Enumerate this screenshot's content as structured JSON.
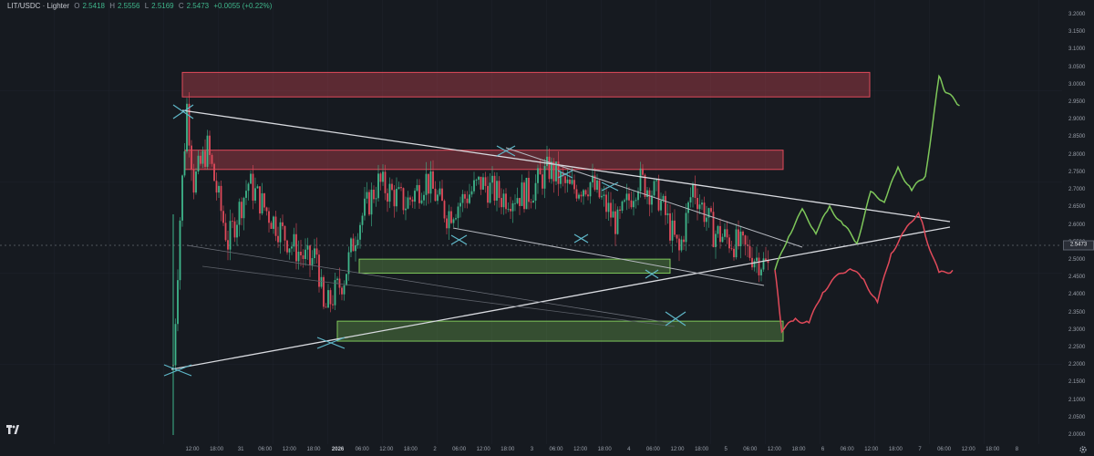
{
  "header": {
    "symbol": "LIT/USDC · Lighter",
    "open_label": "O",
    "open": "2.5418",
    "high_label": "H",
    "high": "2.5556",
    "low_label": "L",
    "low": "2.5169",
    "close_label": "C",
    "close": "2.5473",
    "change": "+0.0055 (+0.22%)"
  },
  "current_price": "2.5473",
  "colors": {
    "up": "#3fb68b",
    "down": "#e04a5a",
    "supply_zone": "#e04a5a",
    "demand_zone": "#7ec75a",
    "background": "#161a20"
  },
  "icons": {
    "logo": "tradingview-logo-icon",
    "settings": "gear-icon"
  },
  "y_axis_labels": [
    "3.2000",
    "3.1500",
    "3.1000",
    "3.0500",
    "3.0000",
    "2.9500",
    "2.9000",
    "2.8500",
    "2.8000",
    "2.7500",
    "2.7000",
    "2.6500",
    "2.6000",
    "2.5500",
    "2.5000",
    "2.4500",
    "2.4000",
    "2.3500",
    "2.3000",
    "2.2500",
    "2.2000",
    "2.1500",
    "2.1000",
    "2.0500",
    "2.0000"
  ],
  "x_axis_labels": [
    "12:00",
    "18:00",
    "31",
    "06:00",
    "12:00",
    "18:00",
    "2026",
    "06:00",
    "12:00",
    "18:00",
    "2",
    "06:00",
    "12:00",
    "18:00",
    "3",
    "06:00",
    "12:00",
    "18:00",
    "4",
    "06:00",
    "12:00",
    "18:00",
    "5",
    "06:00",
    "12:00",
    "18:00",
    "6",
    "06:00",
    "12:00",
    "18:00",
    "7",
    "06:00",
    "12:00",
    "18:00",
    "8"
  ],
  "chart_data": {
    "type": "line",
    "ylim": [
      2.0,
      3.2
    ],
    "price_path": [
      [
        0,
        2.2
      ],
      [
        1,
        2.62
      ],
      [
        2,
        2.94
      ],
      [
        3,
        2.72
      ],
      [
        5,
        2.82
      ],
      [
        8,
        2.55
      ],
      [
        11,
        2.72
      ],
      [
        14,
        2.63
      ],
      [
        17,
        2.55
      ],
      [
        20,
        2.49
      ],
      [
        21,
        2.52
      ],
      [
        22,
        2.35
      ],
      [
        25,
        2.45
      ],
      [
        27,
        2.6
      ],
      [
        30,
        2.72
      ],
      [
        34,
        2.66
      ],
      [
        37,
        2.73
      ],
      [
        40,
        2.63
      ],
      [
        45,
        2.72
      ],
      [
        48,
        2.68
      ],
      [
        52,
        2.69
      ],
      [
        55,
        2.76
      ],
      [
        58,
        2.7
      ],
      [
        61,
        2.72
      ],
      [
        65,
        2.6
      ],
      [
        68,
        2.73
      ],
      [
        71,
        2.68
      ],
      [
        74,
        2.52
      ],
      [
        76,
        2.71
      ],
      [
        79,
        2.58
      ],
      [
        82,
        2.55
      ],
      [
        85,
        2.51
      ],
      [
        87,
        2.48
      ]
    ],
    "projection_bullish": [
      [
        88,
        2.47
      ],
      [
        90,
        2.57
      ],
      [
        92,
        2.64
      ],
      [
        94,
        2.58
      ],
      [
        96,
        2.65
      ],
      [
        98,
        2.6
      ],
      [
        100,
        2.55
      ],
      [
        102,
        2.69
      ],
      [
        104,
        2.67
      ],
      [
        106,
        2.76
      ],
      [
        108,
        2.7
      ],
      [
        110,
        2.74
      ],
      [
        112,
        3.02
      ],
      [
        113,
        2.98
      ],
      [
        115,
        2.94
      ]
    ],
    "projection_bearish": [
      [
        88,
        2.47
      ],
      [
        89,
        2.3
      ],
      [
        91,
        2.33
      ],
      [
        93,
        2.32
      ],
      [
        95,
        2.41
      ],
      [
        97,
        2.45
      ],
      [
        99,
        2.48
      ],
      [
        101,
        2.44
      ],
      [
        103,
        2.38
      ],
      [
        105,
        2.52
      ],
      [
        107,
        2.58
      ],
      [
        109,
        2.64
      ],
      [
        110,
        2.57
      ],
      [
        112,
        2.46
      ],
      [
        114,
        2.47
      ]
    ],
    "zones": [
      {
        "name": "supply-zone-top",
        "kind": "supply",
        "range": [
          2.965,
          3.035
        ]
      },
      {
        "name": "supply-zone-mid",
        "kind": "supply",
        "range": [
          2.758,
          2.813
        ]
      },
      {
        "name": "demand-zone-mid",
        "kind": "demand",
        "range": [
          2.462,
          2.502
        ]
      },
      {
        "name": "demand-zone-low",
        "kind": "demand",
        "range": [
          2.268,
          2.325
        ]
      }
    ]
  }
}
